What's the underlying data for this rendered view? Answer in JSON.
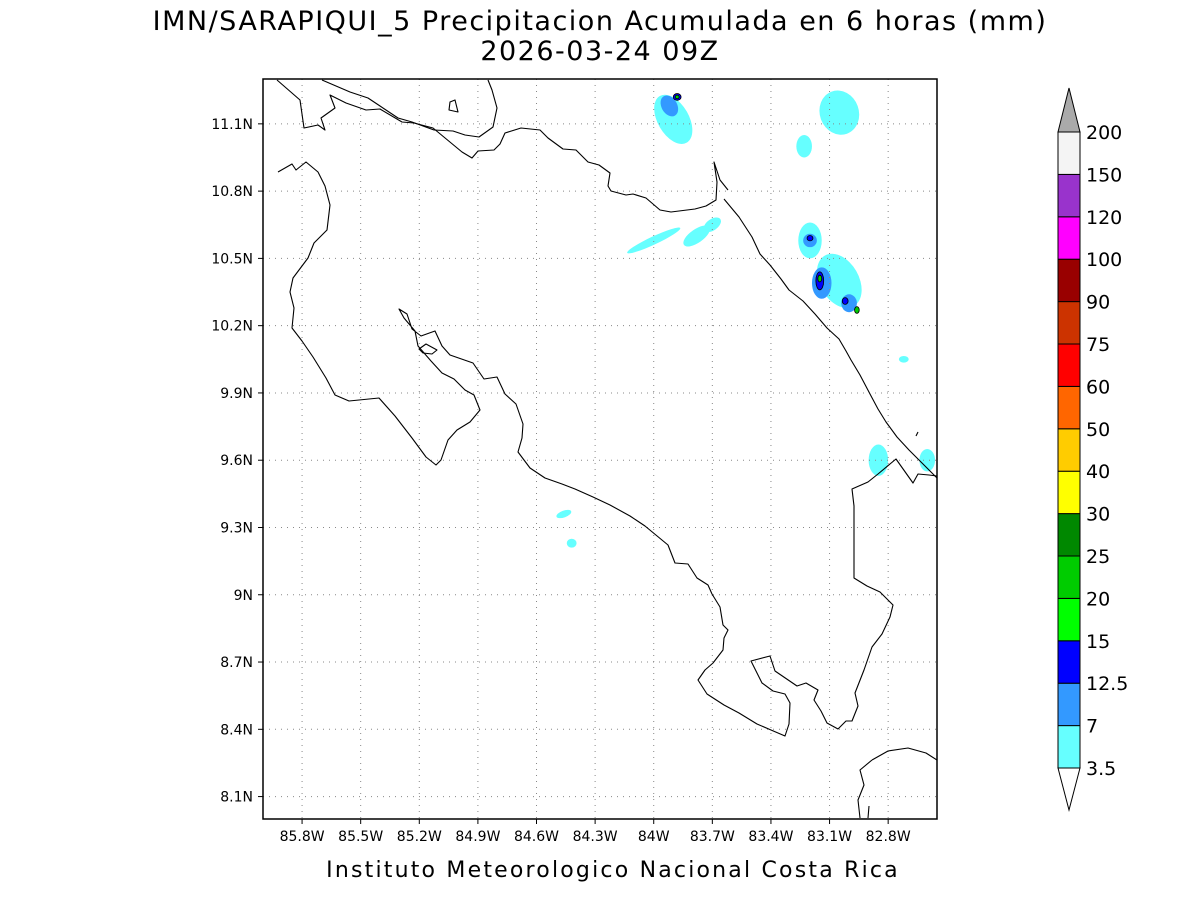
{
  "title": {
    "line1": "IMN/SARAPIQUI_5 Precipitacion Acumulada en 6 horas (mm)",
    "line2": "2026-03-24 09Z"
  },
  "footer": "Instituto Meteorologico Nacional Costa Rica",
  "map": {
    "lon_range": [
      -86.0,
      -82.55
    ],
    "lat_range": [
      8.0,
      11.3
    ],
    "lon_ticks": [
      {
        "value": -85.8,
        "label": "85.8W"
      },
      {
        "value": -85.5,
        "label": "85.5W"
      },
      {
        "value": -85.2,
        "label": "85.2W"
      },
      {
        "value": -84.9,
        "label": "84.9W"
      },
      {
        "value": -84.6,
        "label": "84.6W"
      },
      {
        "value": -84.3,
        "label": "84.3W"
      },
      {
        "value": -84.0,
        "label": "84W"
      },
      {
        "value": -83.7,
        "label": "83.7W"
      },
      {
        "value": -83.4,
        "label": "83.4W"
      },
      {
        "value": -83.1,
        "label": "83.1W"
      },
      {
        "value": -82.8,
        "label": "82.8W"
      }
    ],
    "lat_ticks": [
      {
        "value": 11.1,
        "label": "11.1N"
      },
      {
        "value": 10.8,
        "label": "10.8N"
      },
      {
        "value": 10.5,
        "label": "10.5N"
      },
      {
        "value": 10.2,
        "label": "10.2N"
      },
      {
        "value": 9.9,
        "label": "9.9N"
      },
      {
        "value": 9.6,
        "label": "9.6N"
      },
      {
        "value": 9.3,
        "label": "9.3N"
      },
      {
        "value": 9.0,
        "label": "9N"
      },
      {
        "value": 8.7,
        "label": "8.7N"
      },
      {
        "value": 8.4,
        "label": "8.4N"
      },
      {
        "value": 8.1,
        "label": "8.1N"
      }
    ],
    "precip_cells": [
      {
        "lon": -84.0,
        "lat": 10.58,
        "rx": 0.15,
        "ry": 0.018,
        "level": 1,
        "rot": -25
      },
      {
        "lon": -83.78,
        "lat": 10.6,
        "rx": 0.08,
        "ry": 0.03,
        "level": 1,
        "rot": -35
      },
      {
        "lon": -83.7,
        "lat": 10.65,
        "rx": 0.05,
        "ry": 0.025,
        "level": 1,
        "rot": -35
      },
      {
        "lon": -83.05,
        "lat": 10.4,
        "rx": 0.1,
        "ry": 0.13,
        "level": 1,
        "rot": -30
      },
      {
        "lon": -83.2,
        "lat": 10.58,
        "rx": 0.06,
        "ry": 0.08,
        "level": 1,
        "rot": 0
      },
      {
        "lon": -83.05,
        "lat": 11.15,
        "rx": 0.1,
        "ry": 0.1,
        "level": 1,
        "rot": -20
      },
      {
        "lon": -83.9,
        "lat": 11.12,
        "rx": 0.08,
        "ry": 0.12,
        "level": 1,
        "rot": -30
      },
      {
        "lon": -83.23,
        "lat": 11.0,
        "rx": 0.04,
        "ry": 0.05,
        "level": 1,
        "rot": 0
      },
      {
        "lon": -82.85,
        "lat": 9.6,
        "rx": 0.05,
        "ry": 0.07,
        "level": 1,
        "rot": 0
      },
      {
        "lon": -82.6,
        "lat": 9.6,
        "rx": 0.04,
        "ry": 0.05,
        "level": 1,
        "rot": 0
      },
      {
        "lon": -84.46,
        "lat": 9.36,
        "rx": 0.04,
        "ry": 0.015,
        "level": 1,
        "rot": -20
      },
      {
        "lon": -84.42,
        "lat": 9.23,
        "rx": 0.025,
        "ry": 0.02,
        "level": 1,
        "rot": 0
      },
      {
        "lon": -82.72,
        "lat": 10.05,
        "rx": 0.025,
        "ry": 0.015,
        "level": 1,
        "rot": 0
      },
      {
        "lon": -83.2,
        "lat": 10.58,
        "rx": 0.035,
        "ry": 0.03,
        "level": 2,
        "rot": 0
      },
      {
        "lon": -83.14,
        "lat": 10.39,
        "rx": 0.05,
        "ry": 0.07,
        "level": 2,
        "rot": 0
      },
      {
        "lon": -83.0,
        "lat": 10.3,
        "rx": 0.04,
        "ry": 0.04,
        "level": 2,
        "rot": 0
      },
      {
        "lon": -83.92,
        "lat": 11.18,
        "rx": 0.04,
        "ry": 0.05,
        "level": 2,
        "rot": -30
      },
      {
        "lon": -83.2,
        "lat": 10.59,
        "rx": 0.015,
        "ry": 0.012,
        "level": 3,
        "rot": 0
      },
      {
        "lon": -83.15,
        "lat": 10.4,
        "rx": 0.02,
        "ry": 0.04,
        "level": 3,
        "rot": 0
      },
      {
        "lon": -83.02,
        "lat": 10.31,
        "rx": 0.015,
        "ry": 0.015,
        "level": 3,
        "rot": 0
      },
      {
        "lon": -83.88,
        "lat": 11.22,
        "rx": 0.02,
        "ry": 0.015,
        "level": 3,
        "rot": 0
      },
      {
        "lon": -83.15,
        "lat": 10.41,
        "rx": 0.01,
        "ry": 0.015,
        "level": 5,
        "rot": 0
      },
      {
        "lon": -82.96,
        "lat": 10.27,
        "rx": 0.012,
        "ry": 0.015,
        "level": 5,
        "rot": 0
      },
      {
        "lon": -83.88,
        "lat": 11.22,
        "rx": 0.01,
        "ry": 0.008,
        "level": 5,
        "rot": 0
      }
    ]
  },
  "colorbar": {
    "levels": [
      {
        "label": "3.5",
        "color": "#66ffff"
      },
      {
        "label": "7",
        "color": "#3399ff"
      },
      {
        "label": "12.5",
        "color": "#0000ff"
      },
      {
        "label": "15",
        "color": "#00ff00"
      },
      {
        "label": "20",
        "color": "#00cc00"
      },
      {
        "label": "25",
        "color": "#008800"
      },
      {
        "label": "30",
        "color": "#ffff00"
      },
      {
        "label": "40",
        "color": "#ffcc00"
      },
      {
        "label": "50",
        "color": "#ff6600"
      },
      {
        "label": "60",
        "color": "#ff0000"
      },
      {
        "label": "75",
        "color": "#cc3300"
      },
      {
        "label": "90",
        "color": "#990000"
      },
      {
        "label": "100",
        "color": "#ff00ff"
      },
      {
        "label": "120",
        "color": "#9933cc"
      },
      {
        "label": "150",
        "color": "#f4f4f4"
      },
      {
        "label": "200",
        "color": "#aaaaaa"
      }
    ]
  }
}
